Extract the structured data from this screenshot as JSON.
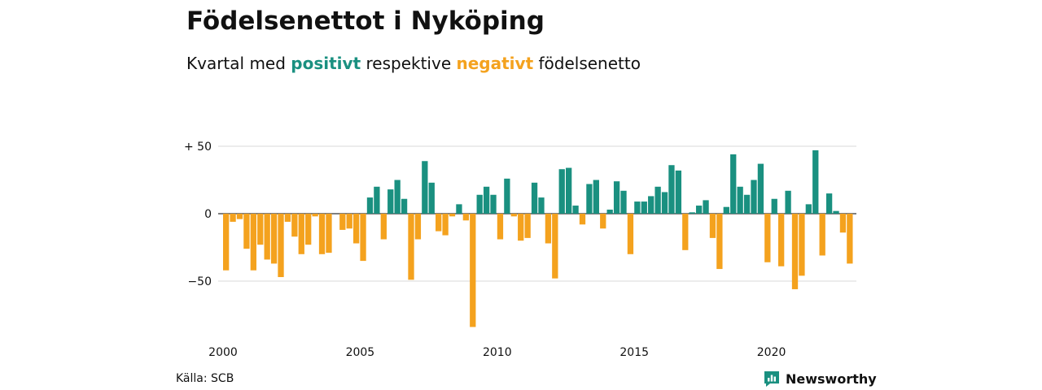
{
  "title": "Födelsenettot i Nyköping",
  "subtitle": {
    "prefix": "Kvartal med",
    "positive_word": "positivt",
    "middle": "respektive",
    "negative_word": "negativt",
    "suffix": "födelsenetto"
  },
  "colors": {
    "positive": "#1a9080",
    "negative": "#f4a21e",
    "grid": "#d9d9d9",
    "zero_line": "#333333"
  },
  "chart_data": {
    "type": "bar",
    "x_tick_labels": [
      "2000",
      "2005",
      "2010",
      "2015",
      "2020"
    ],
    "y_tick_labels": [
      "+ 50",
      "0",
      "−50"
    ],
    "y_ticks": [
      50,
      0,
      -50
    ],
    "ylim": [
      -90,
      53
    ],
    "x_start": 2000,
    "quarters_per_year": 4,
    "values": [
      -42,
      -6,
      -4,
      -26,
      -42,
      -23,
      -34,
      -37,
      -47,
      -6,
      -17,
      -30,
      -23,
      -2,
      -30,
      -29,
      0,
      -12,
      -11,
      -22,
      -35,
      12,
      20,
      -19,
      18,
      25,
      11,
      -49,
      -19,
      39,
      23,
      -13,
      -16,
      -2,
      7,
      -5,
      -84,
      14,
      20,
      14,
      -19,
      26,
      -2,
      -20,
      -18,
      23,
      12,
      -22,
      -48,
      33,
      34,
      6,
      -8,
      22,
      25,
      -11,
      3,
      24,
      17,
      -30,
      9,
      9,
      13,
      20,
      16,
      36,
      32,
      -27,
      1,
      6,
      10,
      -18,
      -41,
      5,
      44,
      20,
      14,
      25,
      37,
      -36,
      11,
      -39,
      17,
      -56,
      -46,
      7,
      47,
      -31,
      15,
      2,
      -14,
      -37
    ]
  },
  "source": "Källa: SCB",
  "brand": {
    "name": "Newsworthy",
    "icon": "newsworthy-logo-icon"
  }
}
